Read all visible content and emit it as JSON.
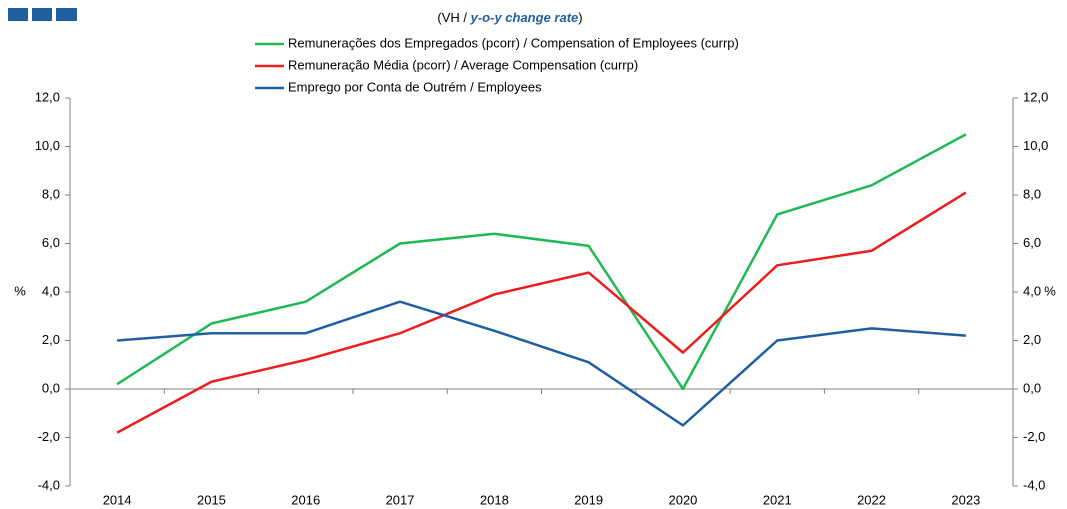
{
  "chart_data": {
    "type": "line",
    "title": [
      "(VH / ",
      "y-o-y change rate",
      ")"
    ],
    "ylabel": "%",
    "y2label": "%",
    "categories": [
      "2014",
      "2015",
      "2016",
      "2017",
      "2018",
      "2019",
      "2020",
      "2021",
      "2022",
      "2023"
    ],
    "series": [
      {
        "name": "Remunerações dos Empregados (pcorr) / Compensation of Employees (currp)",
        "color": "#1db954",
        "values": [
          0.2,
          2.7,
          3.6,
          6.0,
          6.4,
          5.9,
          0.0,
          7.2,
          8.4,
          10.5
        ]
      },
      {
        "name": "Remuneração Média (pcorr) / Average Compensation (currp)",
        "color": "#ee1c1c",
        "values": [
          -1.8,
          0.3,
          1.2,
          2.3,
          3.9,
          4.8,
          1.5,
          5.1,
          5.7,
          8.1
        ]
      },
      {
        "name": "Emprego por Conta de Outrém / Employees",
        "color": "#1f5fa0",
        "values": [
          2.0,
          2.3,
          2.3,
          3.6,
          2.4,
          1.1,
          -1.5,
          2.0,
          2.5,
          2.2
        ]
      }
    ],
    "ylim": [
      -4,
      12
    ],
    "yticks": [
      {
        "value": -4,
        "label": "-4,0"
      },
      {
        "value": -2,
        "label": "-2,0"
      },
      {
        "value": 0,
        "label": "0,0"
      },
      {
        "value": 2,
        "label": "2,0"
      },
      {
        "value": 4,
        "label": "4,0"
      },
      {
        "value": 6,
        "label": "6,0"
      },
      {
        "value": 8,
        "label": "8,0"
      },
      {
        "value": 10,
        "label": "10,0"
      },
      {
        "value": 12,
        "label": "12,0"
      }
    ],
    "y2lim": [
      -4,
      12
    ],
    "y2ticks": [
      {
        "value": -4,
        "label": "-4,0"
      },
      {
        "value": -2,
        "label": "-2,0"
      },
      {
        "value": 0,
        "label": "0,0"
      },
      {
        "value": 2,
        "label": "2,0"
      },
      {
        "value": 4,
        "label": "4,0"
      },
      {
        "value": 6,
        "label": "6,0"
      },
      {
        "value": 8,
        "label": "8,0"
      },
      {
        "value": 10,
        "label": "10,0"
      },
      {
        "value": 12,
        "label": "12,0"
      }
    ],
    "grid": false
  }
}
